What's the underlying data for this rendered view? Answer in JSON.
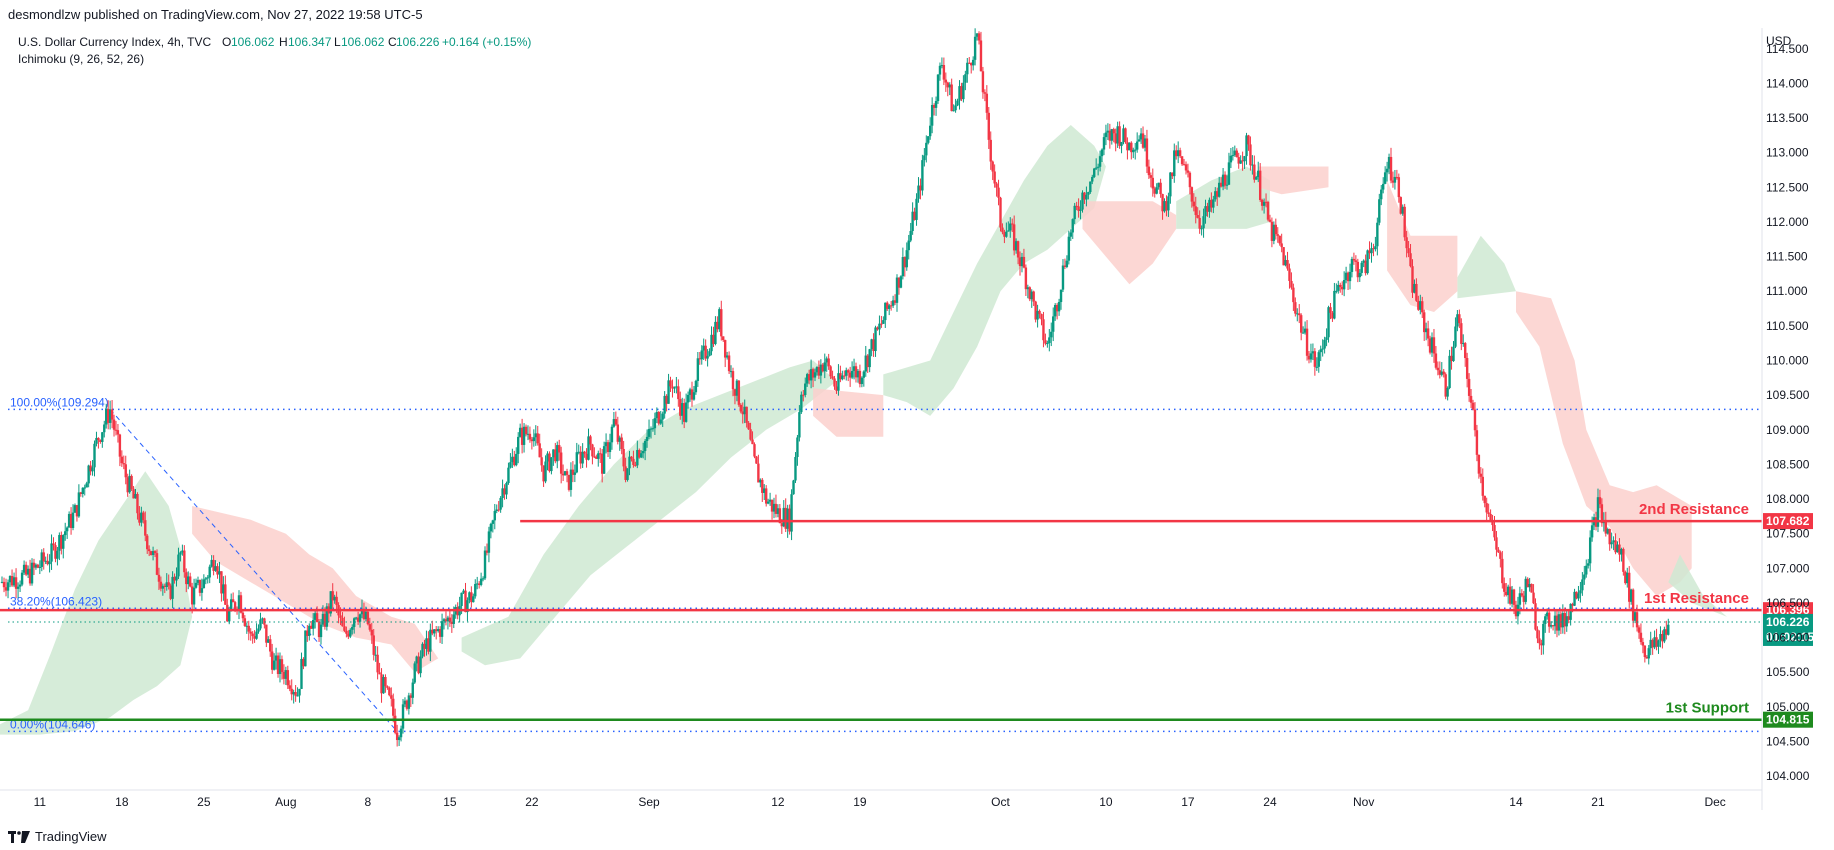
{
  "header": {
    "publisher_line": "desmondlzw published on TradingView.com, Nov 27, 2022 19:58 UTC-5"
  },
  "footer": {
    "brand": "TradingView"
  },
  "colors": {
    "up": "#089981",
    "down": "#f23645",
    "resistance": "#f23645",
    "support": "#1e8a1e",
    "cloud_bull": "#cfe9d2",
    "cloud_bear": "#fbd0cd",
    "fib": "#2962ff",
    "last_price": "#089981"
  },
  "chart_data": {
    "type": "candlestick",
    "title": "U.S. Dollar Currency Index, 4h, TVC",
    "ohlc": {
      "o_label": "O",
      "o": "106.062",
      "h_label": "H",
      "h": "106.347",
      "l_label": "L",
      "l": "106.062",
      "c_label": "C",
      "c": "106.226",
      "change": "+0.164 (+0.15%)"
    },
    "indicator": "Ichimoku (9, 26, 52, 26)",
    "currency": "USD",
    "y_range": [
      103.8,
      114.8
    ],
    "y_ticks": [
      "104.000",
      "104.500",
      "105.000",
      "105.500",
      "106.000",
      "106.500",
      "107.000",
      "107.500",
      "108.000",
      "108.500",
      "109.000",
      "109.500",
      "110.000",
      "110.500",
      "111.000",
      "111.500",
      "112.000",
      "112.500",
      "113.000",
      "113.500",
      "114.000",
      "114.500"
    ],
    "x_ticks": [
      {
        "label": "11",
        "day": 0
      },
      {
        "label": "18",
        "day": 7
      },
      {
        "label": "25",
        "day": 14
      },
      {
        "label": "Aug",
        "day": 21
      },
      {
        "label": "8",
        "day": 28
      },
      {
        "label": "15",
        "day": 35
      },
      {
        "label": "22",
        "day": 42
      },
      {
        "label": "Sep",
        "day": 52
      },
      {
        "label": "12",
        "day": 63
      },
      {
        "label": "19",
        "day": 70
      },
      {
        "label": "Oct",
        "day": 82
      },
      {
        "label": "10",
        "day": 91
      },
      {
        "label": "17",
        "day": 98
      },
      {
        "label": "24",
        "day": 105
      },
      {
        "label": "Nov",
        "day": 113
      },
      {
        "label": "14",
        "day": 126
      },
      {
        "label": "21",
        "day": 133
      },
      {
        "label": "Dec",
        "day": 143
      }
    ],
    "x_range_days": [
      -3.4,
      147
    ],
    "price_path": [
      [
        -3.4,
        106.8
      ],
      [
        -1,
        106.9
      ],
      [
        1,
        107.2
      ],
      [
        3,
        107.8
      ],
      [
        5,
        108.9
      ],
      [
        6,
        109.294
      ],
      [
        7,
        108.5
      ],
      [
        8,
        108.0
      ],
      [
        9,
        107.5
      ],
      [
        10,
        107.0
      ],
      [
        11,
        106.6
      ],
      [
        12,
        107.2
      ],
      [
        13,
        106.6
      ],
      [
        14,
        106.8
      ],
      [
        15,
        107.2
      ],
      [
        16,
        106.3
      ],
      [
        17,
        106.6
      ],
      [
        18,
        106.0
      ],
      [
        19,
        106.2
      ],
      [
        20,
        105.6
      ],
      [
        21,
        105.5
      ],
      [
        22,
        105.2
      ],
      [
        23,
        106.3
      ],
      [
        24,
        106.1
      ],
      [
        25,
        106.6
      ],
      [
        26,
        106.0
      ],
      [
        27,
        106.4
      ],
      [
        28,
        106.2
      ],
      [
        29,
        105.4
      ],
      [
        30,
        105.0
      ],
      [
        30.5,
        104.646
      ],
      [
        31,
        104.9
      ],
      [
        32,
        105.5
      ],
      [
        33,
        105.9
      ],
      [
        34,
        106.1
      ],
      [
        35,
        106.3
      ],
      [
        36,
        106.5
      ],
      [
        37,
        106.6
      ],
      [
        38,
        107.1
      ],
      [
        39,
        107.9
      ],
      [
        40,
        108.4
      ],
      [
        41,
        108.9
      ],
      [
        42,
        109.0
      ],
      [
        43,
        108.4
      ],
      [
        44,
        108.7
      ],
      [
        45,
        108.2
      ],
      [
        46,
        108.6
      ],
      [
        47,
        108.8
      ],
      [
        48,
        108.5
      ],
      [
        49,
        109.1
      ],
      [
        50,
        108.4
      ],
      [
        51,
        108.7
      ],
      [
        52,
        108.9
      ],
      [
        53,
        109.3
      ],
      [
        54,
        109.7
      ],
      [
        55,
        109.2
      ],
      [
        56,
        109.8
      ],
      [
        57,
        110.2
      ],
      [
        58,
        110.6
      ],
      [
        59,
        109.8
      ],
      [
        60,
        109.3
      ],
      [
        61,
        108.5
      ],
      [
        62,
        108.0
      ],
      [
        63,
        107.8
      ],
      [
        64,
        107.7
      ],
      [
        65,
        109.6
      ],
      [
        66,
        109.8
      ],
      [
        67,
        110.0
      ],
      [
        68,
        109.6
      ],
      [
        69,
        109.9
      ],
      [
        70,
        109.8
      ],
      [
        71,
        110.2
      ],
      [
        72,
        110.6
      ],
      [
        73,
        111.0
      ],
      [
        74,
        111.6
      ],
      [
        75,
        112.4
      ],
      [
        76,
        113.5
      ],
      [
        77,
        114.3
      ],
      [
        78,
        113.6
      ],
      [
        79,
        114.1
      ],
      [
        80,
        114.7
      ],
      [
        81,
        113.2
      ],
      [
        82,
        112.0
      ],
      [
        83,
        111.8
      ],
      [
        84,
        111.3
      ],
      [
        85,
        110.7
      ],
      [
        86,
        110.2
      ],
      [
        87,
        111.0
      ],
      [
        88,
        111.9
      ],
      [
        89,
        112.4
      ],
      [
        90,
        112.7
      ],
      [
        91,
        113.2
      ],
      [
        92,
        113.3
      ],
      [
        93,
        113.1
      ],
      [
        94,
        113.3
      ],
      [
        95,
        112.6
      ],
      [
        96,
        112.2
      ],
      [
        97,
        113.0
      ],
      [
        98,
        112.6
      ],
      [
        99,
        112.0
      ],
      [
        100,
        112.2
      ],
      [
        101,
        112.6
      ],
      [
        102,
        112.9
      ],
      [
        103,
        113.1
      ],
      [
        104,
        112.6
      ],
      [
        105,
        111.9
      ],
      [
        106,
        111.6
      ],
      [
        107,
        110.9
      ],
      [
        108,
        110.3
      ],
      [
        109,
        109.9
      ],
      [
        110,
        110.6
      ],
      [
        111,
        111.1
      ],
      [
        112,
        111.4
      ],
      [
        113,
        111.3
      ],
      [
        114,
        111.8
      ],
      [
        115,
        112.9
      ],
      [
        116,
        112.5
      ],
      [
        117,
        111.2
      ],
      [
        118,
        110.6
      ],
      [
        119,
        110.1
      ],
      [
        120,
        109.6
      ],
      [
        121,
        110.6
      ],
      [
        122,
        109.6
      ],
      [
        123,
        108.3
      ],
      [
        124,
        107.5
      ],
      [
        125,
        106.8
      ],
      [
        126,
        106.4
      ],
      [
        127,
        106.8
      ],
      [
        128,
        106.0
      ],
      [
        129,
        106.3
      ],
      [
        130,
        106.2
      ],
      [
        131,
        106.6
      ],
      [
        132,
        107.1
      ],
      [
        133,
        107.9
      ],
      [
        134,
        107.4
      ],
      [
        135,
        107.2
      ],
      [
        136,
        106.4
      ],
      [
        137,
        105.8
      ],
      [
        138,
        105.9
      ],
      [
        139,
        106.2
      ]
    ],
    "ichimoku_cloud": [
      {
        "sentiment": "bull",
        "points": [
          [
            -3.4,
            104.75
          ],
          [
            -1,
            104.95
          ],
          [
            1,
            105.8
          ],
          [
            3,
            106.7
          ],
          [
            5,
            107.4
          ],
          [
            7,
            107.9
          ],
          [
            9,
            108.4
          ],
          [
            11,
            107.9
          ],
          [
            12,
            107.3
          ],
          [
            13,
            106.3
          ],
          [
            12,
            105.6
          ],
          [
            10,
            105.3
          ],
          [
            8,
            105.1
          ],
          [
            6,
            104.85
          ],
          [
            3,
            104.65
          ],
          [
            0,
            104.6
          ],
          [
            -3.4,
            104.6
          ]
        ]
      },
      {
        "sentiment": "bear",
        "points": [
          [
            13,
            107.9
          ],
          [
            18,
            107.7
          ],
          [
            21,
            107.5
          ],
          [
            23,
            107.2
          ],
          [
            25,
            107.0
          ],
          [
            27,
            106.6
          ],
          [
            30,
            106.3
          ],
          [
            32,
            106.2
          ],
          [
            34,
            105.7
          ],
          [
            32,
            105.5
          ],
          [
            30,
            105.9
          ],
          [
            27,
            106.0
          ],
          [
            24,
            106.2
          ],
          [
            21,
            106.5
          ],
          [
            18,
            106.8
          ],
          [
            15,
            107.1
          ],
          [
            13,
            107.5
          ]
        ]
      },
      {
        "sentiment": "bull",
        "points": [
          [
            36,
            106.0
          ],
          [
            40,
            106.3
          ],
          [
            43,
            107.2
          ],
          [
            46,
            107.9
          ],
          [
            49,
            108.5
          ],
          [
            52,
            109.0
          ],
          [
            55,
            109.3
          ],
          [
            58,
            109.5
          ],
          [
            61,
            109.7
          ],
          [
            64,
            109.9
          ],
          [
            66,
            110.0
          ],
          [
            68,
            109.7
          ],
          [
            65,
            109.3
          ],
          [
            62,
            109.0
          ],
          [
            59,
            108.6
          ],
          [
            56,
            108.1
          ],
          [
            53,
            107.7
          ],
          [
            50,
            107.3
          ],
          [
            47,
            106.9
          ],
          [
            44,
            106.3
          ],
          [
            41,
            105.7
          ],
          [
            38,
            105.6
          ],
          [
            36,
            105.8
          ]
        ]
      },
      {
        "sentiment": "bear",
        "points": [
          [
            66,
            109.6
          ],
          [
            72,
            109.5
          ],
          [
            72,
            108.9
          ],
          [
            68,
            108.9
          ],
          [
            66,
            109.2
          ]
        ]
      },
      {
        "sentiment": "bull",
        "points": [
          [
            72,
            109.8
          ],
          [
            76,
            110.0
          ],
          [
            78,
            110.7
          ],
          [
            80,
            111.4
          ],
          [
            82,
            112.0
          ],
          [
            84,
            112.6
          ],
          [
            86,
            113.1
          ],
          [
            88,
            113.4
          ],
          [
            90,
            113.1
          ],
          [
            91,
            112.8
          ],
          [
            90,
            112.2
          ],
          [
            88,
            111.9
          ],
          [
            86,
            111.6
          ],
          [
            84,
            111.4
          ],
          [
            82,
            111.0
          ],
          [
            80,
            110.2
          ],
          [
            78,
            109.6
          ],
          [
            76,
            109.2
          ],
          [
            74,
            109.4
          ],
          [
            72,
            109.5
          ]
        ]
      },
      {
        "sentiment": "bear",
        "points": [
          [
            89,
            112.3
          ],
          [
            95,
            112.3
          ],
          [
            97,
            112.1
          ],
          [
            97,
            111.9
          ],
          [
            95,
            111.4
          ],
          [
            93,
            111.1
          ],
          [
            91,
            111.5
          ],
          [
            89,
            111.9
          ]
        ]
      },
      {
        "sentiment": "bull",
        "points": [
          [
            97,
            112.3
          ],
          [
            100,
            112.6
          ],
          [
            103,
            112.8
          ],
          [
            105,
            112.6
          ],
          [
            105,
            112.0
          ],
          [
            103,
            111.9
          ],
          [
            100,
            111.9
          ],
          [
            97,
            111.9
          ]
        ]
      },
      {
        "sentiment": "bear",
        "points": [
          [
            104,
            112.8
          ],
          [
            110,
            112.8
          ],
          [
            110,
            112.5
          ],
          [
            106,
            112.4
          ],
          [
            104,
            112.5
          ]
        ]
      },
      {
        "sentiment": "bear",
        "points": [
          [
            115,
            112.6
          ],
          [
            117,
            111.8
          ],
          [
            121,
            111.8
          ],
          [
            121,
            111.0
          ],
          [
            119,
            110.7
          ],
          [
            117,
            110.8
          ],
          [
            115,
            111.3
          ]
        ]
      },
      {
        "sentiment": "bull",
        "points": [
          [
            121,
            111.2
          ],
          [
            123,
            111.8
          ],
          [
            125,
            111.4
          ],
          [
            126,
            111.0
          ],
          [
            121,
            110.9
          ]
        ]
      },
      {
        "sentiment": "bear",
        "points": [
          [
            126,
            111.0
          ],
          [
            129,
            110.9
          ],
          [
            131,
            110.0
          ],
          [
            132,
            109.0
          ],
          [
            134,
            108.2
          ],
          [
            136,
            108.1
          ],
          [
            138,
            108.2
          ],
          [
            141,
            107.9
          ],
          [
            141,
            107.0
          ],
          [
            140,
            106.8
          ],
          [
            138,
            106.6
          ],
          [
            136,
            107.0
          ],
          [
            134,
            107.6
          ],
          [
            132,
            107.9
          ],
          [
            130,
            108.8
          ],
          [
            128,
            110.2
          ],
          [
            126,
            110.7
          ]
        ]
      },
      {
        "sentiment": "bull",
        "points": [
          [
            140,
            107.2
          ],
          [
            142,
            106.6
          ],
          [
            144,
            106.3
          ],
          [
            141,
            106.5
          ],
          [
            139,
            106.8
          ]
        ]
      }
    ],
    "levels": [
      {
        "name": "2nd Resistance",
        "value": "107.682",
        "value_num": 107.682,
        "color_key": "resistance",
        "start_day": 41
      },
      {
        "name": "1st Resistance",
        "value": "106.396",
        "value_num": 106.396,
        "color_key": "resistance",
        "start_day": -3.4
      },
      {
        "name": "1st Support",
        "value": "104.815",
        "value_num": 104.815,
        "color_key": "support",
        "start_day": -3.4
      }
    ],
    "fibonacci": [
      {
        "label": "100.00%(109.294)",
        "value": 109.294
      },
      {
        "label": "38.20%(106.423)",
        "value": 106.423
      },
      {
        "label": "0.00%(104.646)",
        "value": 104.646
      }
    ],
    "fib_trend": {
      "from": [
        6,
        109.294
      ],
      "to": [
        30.5,
        104.646
      ]
    },
    "last_price": {
      "value": "106.226",
      "value_num": 106.226,
      "countdown": "01:02:15"
    }
  }
}
